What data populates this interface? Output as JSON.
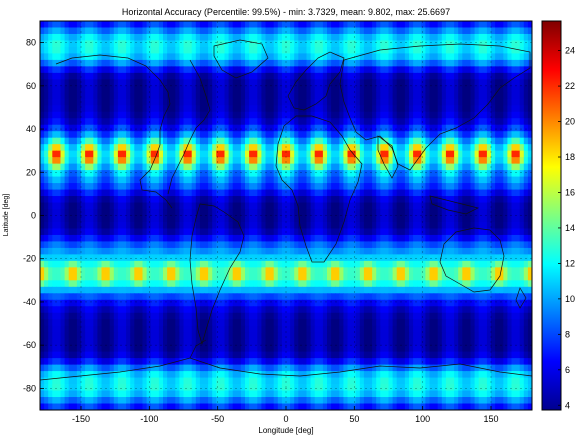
{
  "chart_data": {
    "type": "heatmap",
    "title": "Horizontal Accuracy (Percentile: 99.5%) - min: 3.7329, mean: 9.802, max: 25.6697",
    "xlabel": "Longitude [deg]",
    "ylabel": "Latitude [deg]",
    "xlim": [
      -180,
      180
    ],
    "ylim": [
      -90,
      90
    ],
    "x_ticks": [
      -150,
      -100,
      -50,
      0,
      50,
      100,
      150
    ],
    "y_ticks": [
      80,
      60,
      40,
      20,
      0,
      -20,
      -40,
      -60,
      -80
    ],
    "colorbar": {
      "range": [
        3.7329,
        25.6697
      ],
      "ticks": [
        4,
        6,
        8,
        10,
        12,
        14,
        16,
        18,
        20,
        22,
        24
      ],
      "colormap": "jet"
    },
    "stats": {
      "min": 3.7329,
      "mean": 9.802,
      "max": 25.6697
    },
    "grid": true,
    "overlay": "world coastlines",
    "pattern": {
      "longitude_period_deg": 24,
      "high_accuracy_bands_lat_deg": [
        28,
        -28
      ],
      "lobe_rows": [
        {
          "lat_deg": 28,
          "lon_phase_deg": 0,
          "peak": 24.5
        },
        {
          "lat_deg": -27,
          "lon_phase_deg": 12,
          "peak": 23.5
        }
      ]
    }
  }
}
